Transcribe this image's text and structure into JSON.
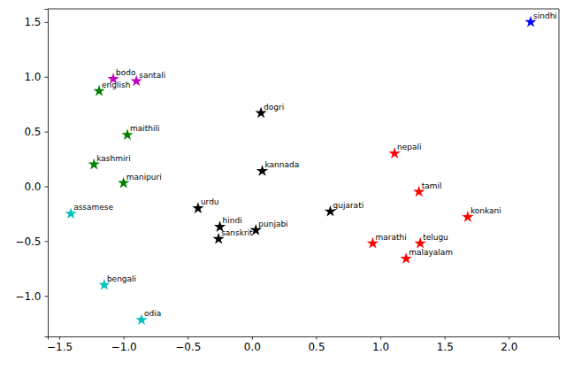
{
  "chart_data": {
    "type": "scatter",
    "marker": "star",
    "xlim": [
      -1.59,
      2.39
    ],
    "ylim": [
      -1.37,
      1.62
    ],
    "xticks": [
      {
        "value": -1.5,
        "label": "−1.5"
      },
      {
        "value": -1.0,
        "label": "−1.0"
      },
      {
        "value": -0.5,
        "label": "−0.5"
      },
      {
        "value": 0,
        "label": "0.0"
      },
      0.5,
      {
        "value": 1,
        "label": "1.0"
      },
      1.5,
      {
        "value": 2,
        "label": "2.0"
      }
    ],
    "yticks": [
      {
        "value": -1.0,
        "label": "−1.0"
      },
      {
        "value": -0.5,
        "label": "−0.5"
      },
      {
        "value": 0,
        "label": "0.0"
      },
      0.5,
      {
        "value": 1,
        "label": "1.0"
      },
      1.5
    ],
    "series": [
      {
        "color": "#bf00bf",
        "labels": [
          "bodo",
          "santali"
        ],
        "x": [
          -1.08,
          -0.9
        ],
        "y": [
          0.98,
          0.96
        ]
      },
      {
        "color": "#008000",
        "labels": [
          "english",
          "maithili",
          "kashmiri",
          "manipuri"
        ],
        "x": [
          -1.19,
          -0.97,
          -1.23,
          -1.0
        ],
        "y": [
          0.87,
          0.47,
          0.2,
          0.03
        ]
      },
      {
        "color": "#00bfbf",
        "labels": [
          "assamese",
          "bengali",
          "odia"
        ],
        "x": [
          -1.41,
          -1.15,
          -0.86
        ],
        "y": [
          -0.25,
          -0.9,
          -1.22
        ]
      },
      {
        "color": "#000000",
        "labels": [
          "dogri",
          "kannada",
          "urdu",
          "hindi",
          "sanskrit",
          "punjabi",
          "gujarati"
        ],
        "x": [
          0.07,
          0.08,
          -0.42,
          -0.25,
          -0.26,
          0.03,
          0.61
        ],
        "y": [
          0.67,
          0.14,
          -0.2,
          -0.37,
          -0.48,
          -0.4,
          -0.23
        ]
      },
      {
        "color": "#ff0000",
        "labels": [
          "nepali",
          "tamil",
          "konkani",
          "marathi",
          "telugu",
          "malayalam"
        ],
        "x": [
          1.11,
          1.3,
          1.68,
          0.94,
          1.31,
          1.2
        ],
        "y": [
          0.3,
          -0.05,
          -0.28,
          -0.52,
          -0.52,
          -0.66
        ]
      },
      {
        "color": "#0000ff",
        "labels": [
          "sindhi"
        ],
        "x": [
          2.17
        ],
        "y": [
          1.5
        ]
      }
    ]
  }
}
